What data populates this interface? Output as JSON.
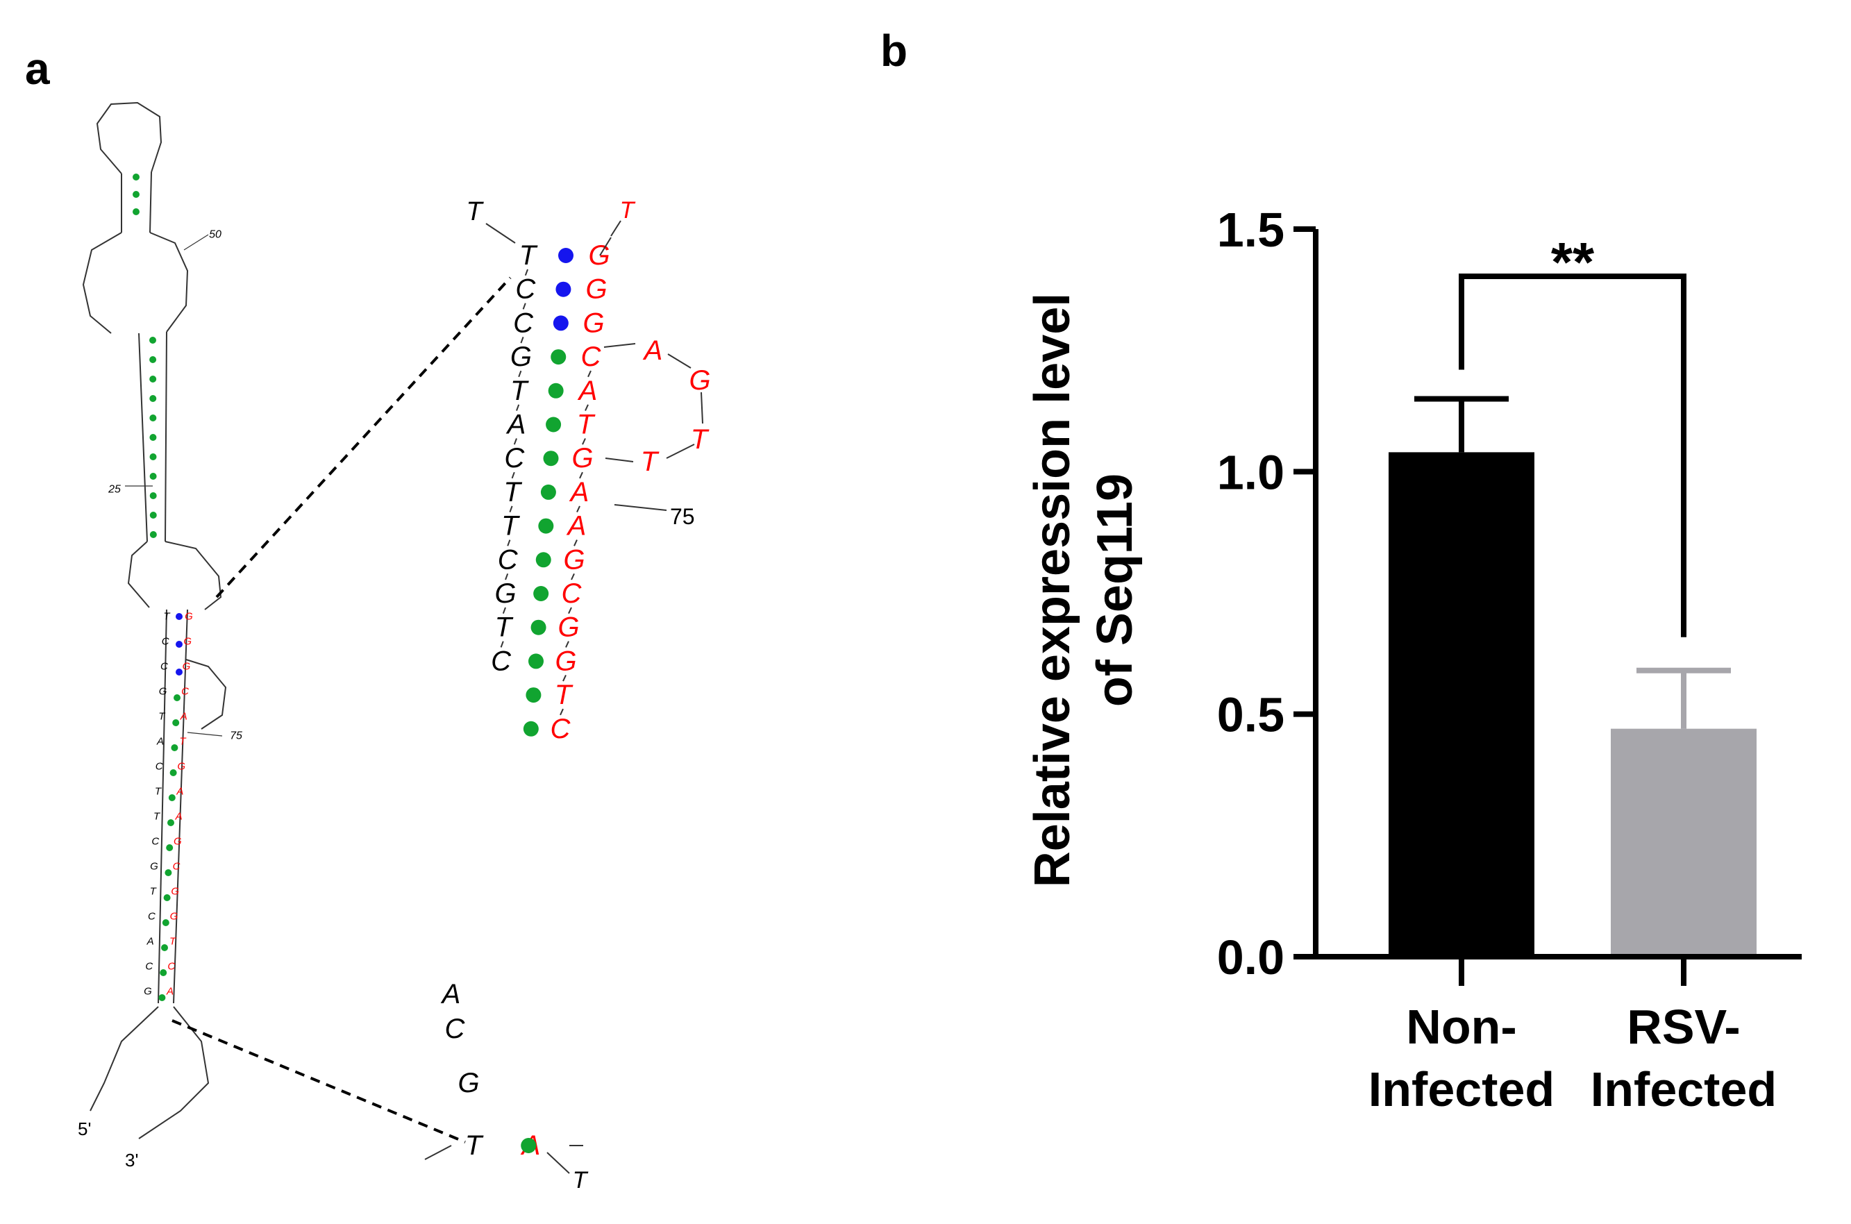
{
  "panels": {
    "a": "a",
    "b": "b"
  },
  "colors": {
    "black": "#000000",
    "red": "#ff0000",
    "green": "#11a430",
    "blue": "#1515ee",
    "bar_non": "#000000",
    "bar_rsv": "#a7a6ab",
    "err_rsv": "#a7a6ab"
  },
  "structure": {
    "small_labels": {
      "five_prime": "5'",
      "three_prime": "3'",
      "n25": "25",
      "n50": "50",
      "n75": "75"
    },
    "zoom_labels": {
      "n75": "75"
    },
    "zoom_left": [
      "T",
      "C",
      "C",
      "G",
      "T",
      "A",
      "C",
      "T",
      "T",
      "C",
      "G",
      "T",
      "C",
      "A",
      "C",
      "G",
      "T"
    ],
    "zoom_right": [
      "G",
      "G",
      "G",
      "C",
      "A",
      "T",
      "G",
      "A",
      "A",
      "G",
      "C",
      "G",
      "G",
      "T",
      "C",
      "A"
    ],
    "zoom_right_loop": [
      "A",
      "G",
      "T",
      "T"
    ],
    "zoom_extra": {
      "top_left_T": "T",
      "top_right_T": "T",
      "bottom_right_T": "T",
      "bottom_left": "T"
    },
    "zoom_pair_colors": [
      "blue",
      "blue",
      "blue",
      "green",
      "green",
      "green",
      "green",
      "green",
      "green",
      "green",
      "green",
      "green",
      "green",
      "green",
      "green",
      "green"
    ]
  },
  "chart_data": {
    "type": "bar",
    "categories": [
      "Non-\nInfected",
      "RSV-\nInfected"
    ],
    "category_lines": [
      [
        "Non-",
        "Infected"
      ],
      [
        "RSV-",
        "Infected"
      ]
    ],
    "values": [
      1.04,
      0.47
    ],
    "errors": [
      0.11,
      0.12
    ],
    "ylabel_lines": [
      "Relative expression level",
      "of Seq119"
    ],
    "ylim": [
      0,
      1.5
    ],
    "yticks": [
      0.0,
      0.5,
      1.0,
      1.5
    ],
    "ytick_labels": [
      "0.0",
      "0.5",
      "1.0",
      "1.5"
    ],
    "significance": "**"
  }
}
